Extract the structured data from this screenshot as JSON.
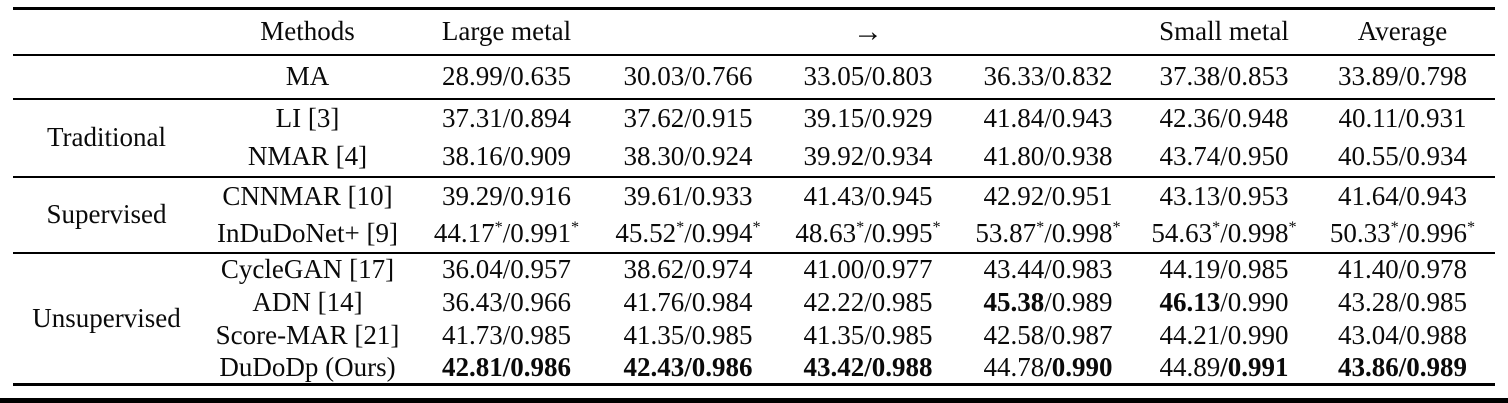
{
  "colors": {
    "text": "#0a0a0a",
    "rule": "#000000",
    "background": "#ffffff"
  },
  "table": {
    "header": {
      "group": "",
      "methods": "Methods",
      "col1": "Large metal",
      "col2": "",
      "col3": "→",
      "col4": "",
      "col5": "Small metal",
      "average": "Average"
    },
    "sections": [
      {
        "label": "",
        "rows": [
          {
            "method": "MA",
            "cells": [
              [
                [
                  "28.99/0.635",
                  ""
                ]
              ],
              [
                [
                  "30.03/0.766",
                  ""
                ]
              ],
              [
                [
                  "33.05/0.803",
                  ""
                ]
              ],
              [
                [
                  "36.33/0.832",
                  ""
                ]
              ],
              [
                [
                  "37.38/0.853",
                  ""
                ]
              ],
              [
                [
                  "33.89/0.798",
                  ""
                ]
              ]
            ]
          }
        ]
      },
      {
        "label": "Traditional",
        "rows": [
          {
            "method": "LI [3]",
            "cells": [
              [
                [
                  "37.31/0.894",
                  ""
                ]
              ],
              [
                [
                  "37.62/0.915",
                  ""
                ]
              ],
              [
                [
                  "39.15/0.929",
                  ""
                ]
              ],
              [
                [
                  "41.84/0.943",
                  ""
                ]
              ],
              [
                [
                  "42.36/0.948",
                  ""
                ]
              ],
              [
                [
                  "40.11/0.931",
                  ""
                ]
              ]
            ]
          },
          {
            "method": "NMAR [4]",
            "cells": [
              [
                [
                  "38.16/0.909",
                  ""
                ]
              ],
              [
                [
                  "38.30/0.924",
                  ""
                ]
              ],
              [
                [
                  "39.92/0.934",
                  ""
                ]
              ],
              [
                [
                  "41.80/0.938",
                  ""
                ]
              ],
              [
                [
                  "43.74/0.950",
                  ""
                ]
              ],
              [
                [
                  "40.55/0.934",
                  ""
                ]
              ]
            ]
          }
        ]
      },
      {
        "label": "Supervised",
        "rows": [
          {
            "method": "CNNMAR [10]",
            "cells": [
              [
                [
                  "39.29/0.916",
                  ""
                ]
              ],
              [
                [
                  "39.61/0.933",
                  ""
                ]
              ],
              [
                [
                  "41.43/0.945",
                  ""
                ]
              ],
              [
                [
                  "42.92/0.951",
                  ""
                ]
              ],
              [
                [
                  "43.13/0.953",
                  ""
                ]
              ],
              [
                [
                  "41.64/0.943",
                  ""
                ]
              ]
            ]
          },
          {
            "method": "InDuDoNet+ [9]",
            "cells": [
              [
                [
                  "44.17",
                  ""
                ],
                [
                  "*",
                  "sup"
                ],
                [
                  "/0.991",
                  ""
                ],
                [
                  "*",
                  "sup"
                ]
              ],
              [
                [
                  "45.52",
                  ""
                ],
                [
                  "*",
                  "sup"
                ],
                [
                  "/0.994",
                  ""
                ],
                [
                  "*",
                  "sup"
                ]
              ],
              [
                [
                  "48.63",
                  ""
                ],
                [
                  "*",
                  "sup"
                ],
                [
                  "/0.995",
                  ""
                ],
                [
                  "*",
                  "sup"
                ]
              ],
              [
                [
                  "53.87",
                  ""
                ],
                [
                  "*",
                  "sup"
                ],
                [
                  "/0.998",
                  ""
                ],
                [
                  "*",
                  "sup"
                ]
              ],
              [
                [
                  "54.63",
                  ""
                ],
                [
                  "*",
                  "sup"
                ],
                [
                  "/0.998",
                  ""
                ],
                [
                  "*",
                  "sup"
                ]
              ],
              [
                [
                  "50.33",
                  ""
                ],
                [
                  "*",
                  "sup"
                ],
                [
                  "/0.996",
                  ""
                ],
                [
                  "*",
                  "sup"
                ]
              ]
            ]
          }
        ]
      },
      {
        "label": "Unsupervised",
        "rows": [
          {
            "method": "CycleGAN [17]",
            "cells": [
              [
                [
                  "36.04/0.957",
                  ""
                ]
              ],
              [
                [
                  "38.62/0.974",
                  ""
                ]
              ],
              [
                [
                  "41.00/0.977",
                  ""
                ]
              ],
              [
                [
                  "43.44/0.983",
                  ""
                ]
              ],
              [
                [
                  "44.19/0.985",
                  ""
                ]
              ],
              [
                [
                  "41.40/0.978",
                  ""
                ]
              ]
            ]
          },
          {
            "method": "ADN [14]",
            "cells": [
              [
                [
                  "36.43/0.966",
                  ""
                ]
              ],
              [
                [
                  "41.76/0.984",
                  ""
                ]
              ],
              [
                [
                  "42.22/0.985",
                  ""
                ]
              ],
              [
                [
                  "45.38",
                  "b"
                ],
                [
                  "/0.989",
                  ""
                ]
              ],
              [
                [
                  "46.13",
                  "b"
                ],
                [
                  "/0.990",
                  ""
                ]
              ],
              [
                [
                  "43.28/0.985",
                  ""
                ]
              ]
            ]
          },
          {
            "method": "Score-MAR [21]",
            "cells": [
              [
                [
                  "41.73/0.985",
                  ""
                ]
              ],
              [
                [
                  "41.35/0.985",
                  ""
                ]
              ],
              [
                [
                  "41.35/0.985",
                  ""
                ]
              ],
              [
                [
                  "42.58/0.987",
                  ""
                ]
              ],
              [
                [
                  "44.21/0.990",
                  ""
                ]
              ],
              [
                [
                  "43.04/0.988",
                  ""
                ]
              ]
            ]
          },
          {
            "method": "DuDoDp (Ours)",
            "cells": [
              [
                [
                  "42.81/0.986",
                  "b"
                ]
              ],
              [
                [
                  "42.43/0.986",
                  "b"
                ]
              ],
              [
                [
                  "43.42/0.988",
                  "b"
                ]
              ],
              [
                [
                  "44.78",
                  ""
                ],
                [
                  "/0.990",
                  "b"
                ]
              ],
              [
                [
                  "44.89",
                  ""
                ],
                [
                  "/0.991",
                  "b"
                ]
              ],
              [
                [
                  "43.86/0.989",
                  "b"
                ]
              ]
            ]
          }
        ]
      }
    ]
  }
}
